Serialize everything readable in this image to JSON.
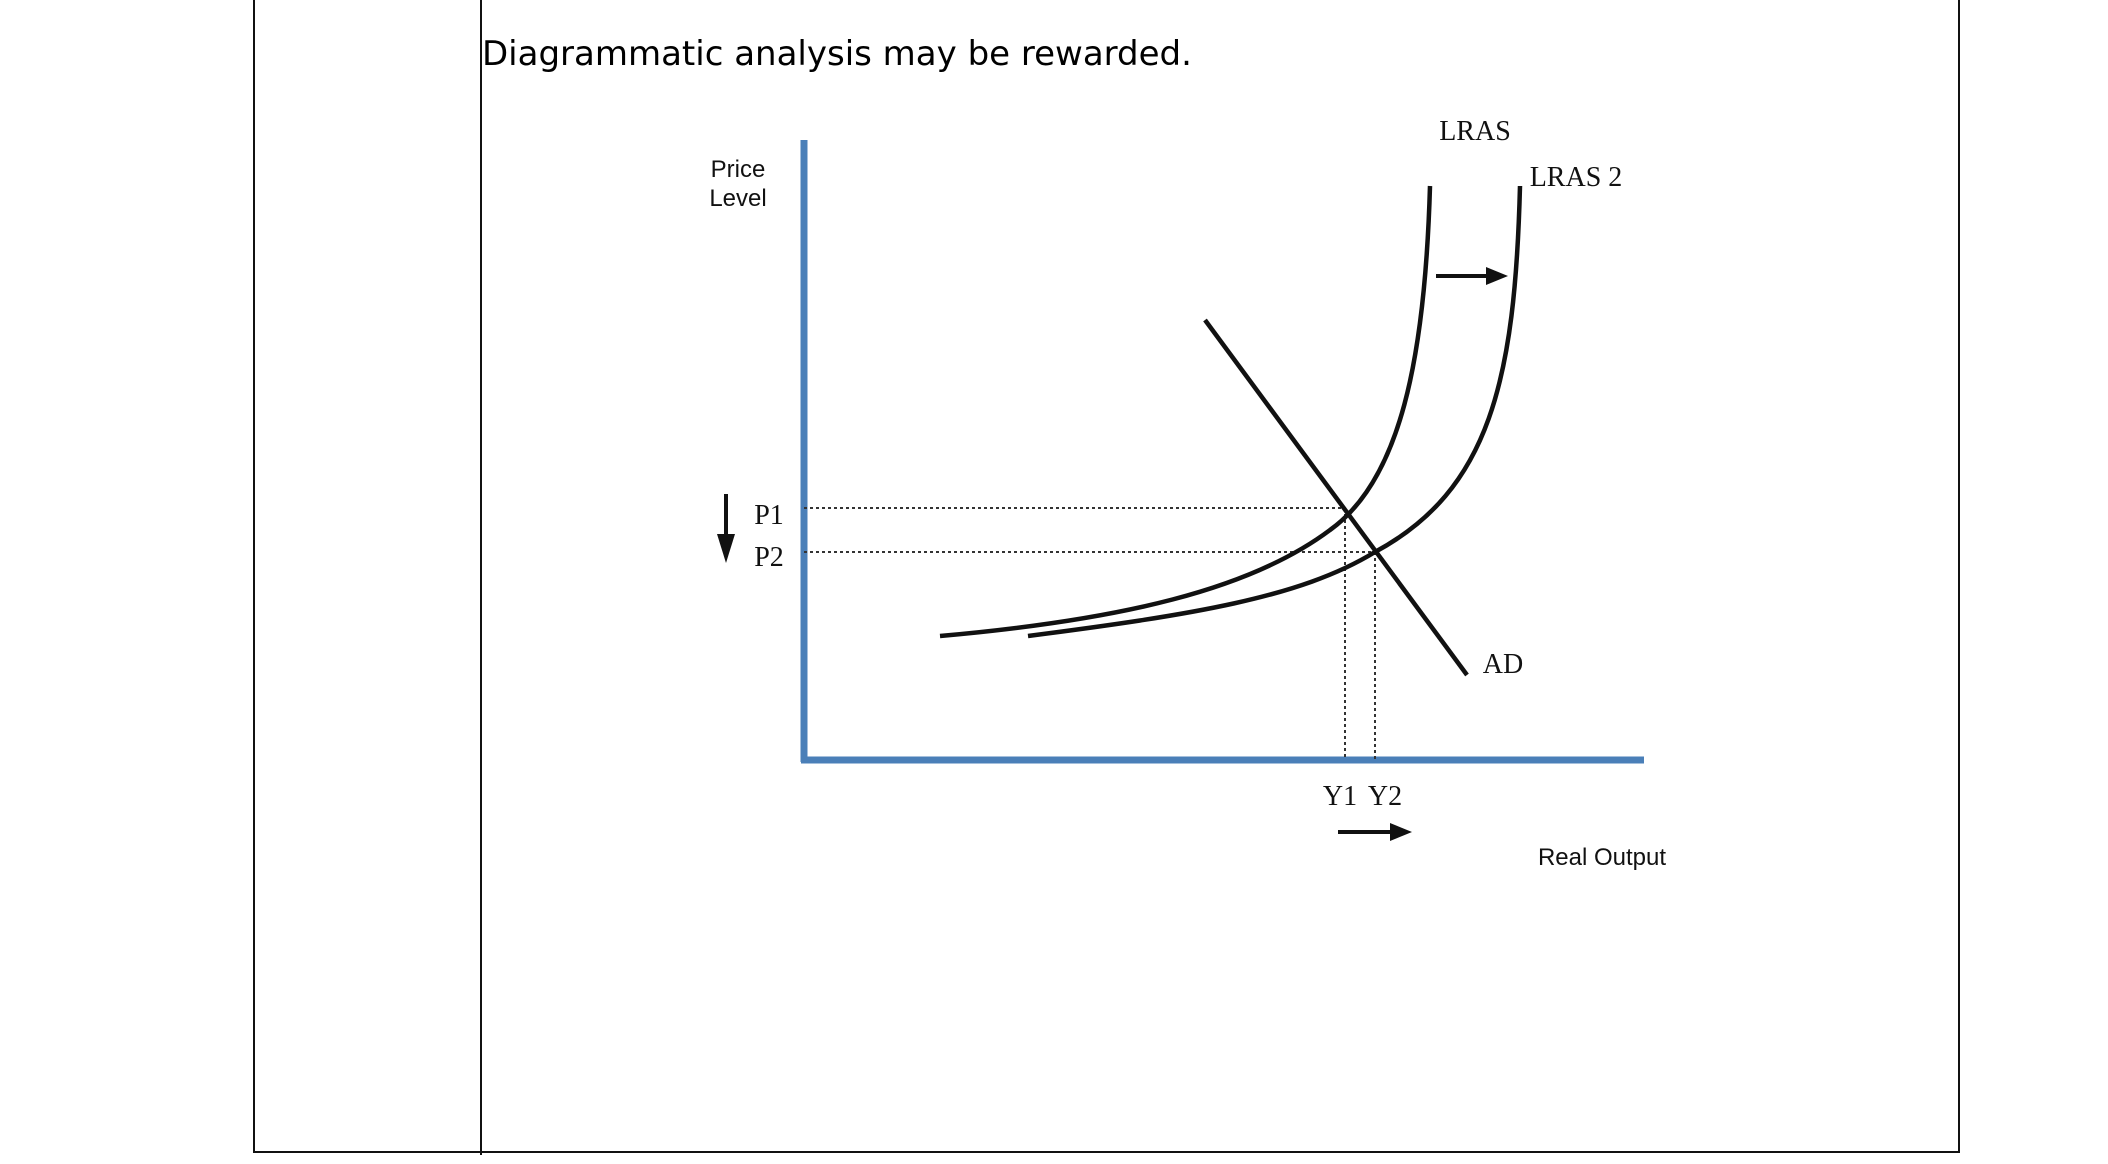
{
  "instruction_text": "Diagrammatic analysis may be rewarded.",
  "diagram": {
    "y_axis_label_line1": "Price",
    "y_axis_label_line2": "Level",
    "x_axis_label": "Real Output",
    "curve_labels": {
      "lras": "LRAS",
      "lras2": "LRAS 2",
      "ad": "AD"
    },
    "price_labels": {
      "p1": "P1",
      "p2": "P2"
    },
    "output_labels": {
      "y1": "Y1",
      "y2": "Y2"
    },
    "colors": {
      "axis": "#4a7fb8",
      "curve": "#111111",
      "table_border": "#111111"
    }
  }
}
